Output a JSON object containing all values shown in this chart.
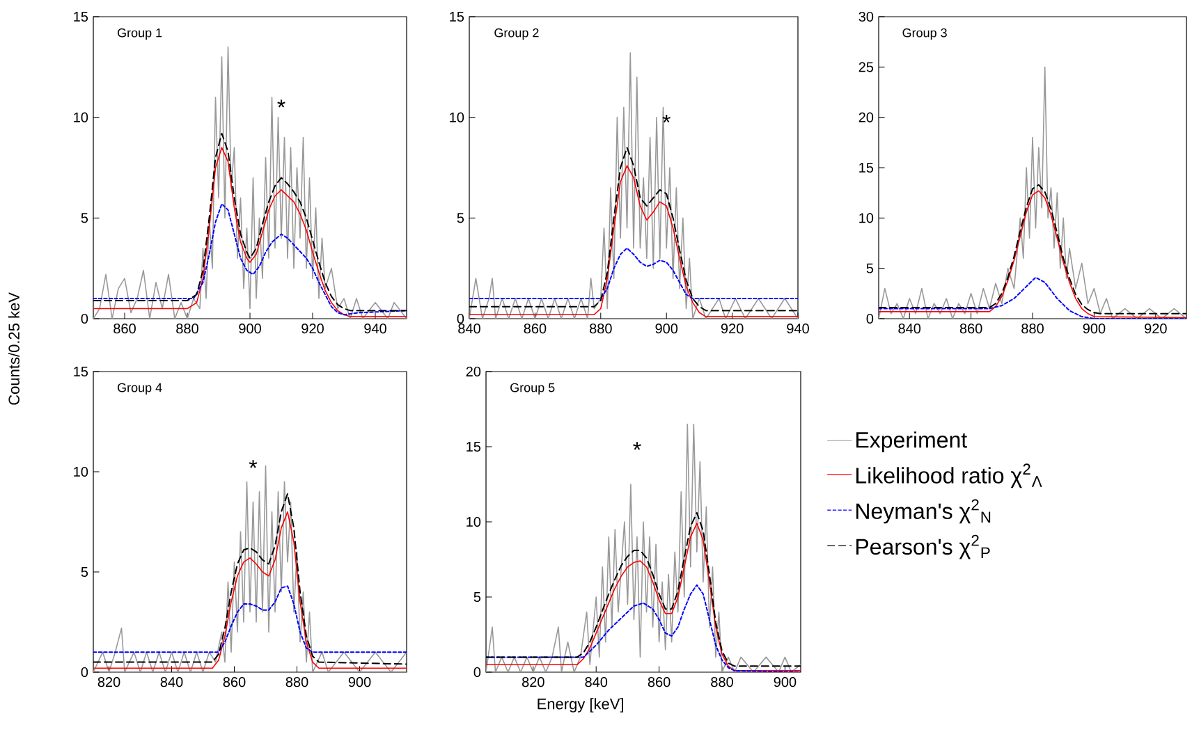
{
  "chart_data": [
    {
      "type": "line",
      "title": "Group 1",
      "ylabel": "Counts/0.25 keV",
      "xlim": [
        850,
        950
      ],
      "ylim": [
        0,
        15
      ],
      "xticks": [
        860,
        880,
        900,
        920,
        940
      ],
      "yticks": [
        0,
        5,
        10,
        15
      ],
      "annotations": [
        "*"
      ],
      "series": [
        {
          "color": "#999999",
          "line_style": "solid",
          "x": [
            850,
            852,
            854,
            856,
            858,
            860,
            862,
            864,
            866,
            868,
            870,
            872,
            874,
            876,
            878,
            880,
            882,
            884,
            885,
            886,
            887,
            888,
            889,
            890,
            891,
            892,
            893,
            894,
            895,
            896,
            897,
            898,
            899,
            900,
            901,
            902,
            903,
            904,
            905,
            906,
            907,
            908,
            909,
            910,
            911,
            912,
            913,
            914,
            915,
            916,
            917,
            918,
            919,
            920,
            921,
            922,
            923,
            924,
            926,
            928,
            930,
            932,
            934,
            936,
            940,
            944,
            946,
            950
          ],
          "values": [
            0,
            0.5,
            2.2,
            0,
            1.5,
            2.0,
            0.3,
            1.0,
            2.4,
            0,
            1.8,
            0.5,
            2.2,
            0,
            0.8,
            0,
            1.0,
            0.5,
            3.5,
            1.0,
            5.0,
            2.5,
            11.0,
            6.0,
            13.0,
            5.0,
            13.5,
            6.5,
            8.5,
            3.0,
            6.0,
            1.5,
            4.5,
            0.5,
            7.0,
            1.0,
            5.0,
            2.0,
            8.0,
            3.0,
            11.0,
            3.5,
            10.0,
            4.0,
            9.0,
            3.0,
            8.5,
            2.5,
            7.5,
            4.0,
            9.0,
            2.5,
            7.0,
            2.0,
            5.5,
            1.0,
            4.0,
            1.5,
            2.5,
            0.5,
            1.0,
            0,
            1.0,
            0,
            0.8,
            0,
            0.8,
            0
          ]
        },
        {
          "color": "#ff0000",
          "line_style": "solid",
          "x": [
            850,
            880,
            883,
            885,
            887,
            889,
            891,
            893,
            895,
            897,
            899,
            900,
            902,
            904,
            906,
            908,
            910,
            912,
            914,
            916,
            918,
            920,
            922,
            924,
            926,
            928,
            930,
            932,
            950
          ],
          "values": [
            0.5,
            0.5,
            0.8,
            2,
            4.5,
            7.5,
            8.5,
            7.8,
            5.5,
            3.8,
            3.0,
            2.8,
            3.2,
            4.3,
            5.4,
            6.1,
            6.4,
            6.1,
            5.8,
            5.2,
            4.4,
            3.3,
            2.3,
            1.4,
            0.8,
            0.4,
            0.2,
            0.1,
            0.1
          ]
        },
        {
          "color": "#0000ff",
          "line_style": "dotted",
          "x": [
            850,
            882,
            885,
            887,
            889,
            891,
            893,
            895,
            897,
            899,
            901,
            903,
            905,
            907,
            910,
            912,
            915,
            918,
            920,
            922,
            924,
            926,
            928,
            930,
            935,
            950
          ],
          "values": [
            1.0,
            1.0,
            1.8,
            3.2,
            4.8,
            5.7,
            5.4,
            4.2,
            3.0,
            2.4,
            2.2,
            2.6,
            3.3,
            3.8,
            4.2,
            4.0,
            3.5,
            3.0,
            2.5,
            1.8,
            1.2,
            0.6,
            0.3,
            0.2,
            0.3,
            0.4
          ]
        },
        {
          "color": "#000000",
          "line_style": "dashed",
          "x": [
            850,
            880,
            883,
            885,
            887,
            889,
            891,
            893,
            895,
            897,
            899,
            900,
            902,
            904,
            906,
            908,
            910,
            912,
            914,
            916,
            918,
            920,
            922,
            924,
            926,
            928,
            930,
            932,
            950
          ],
          "values": [
            0.9,
            0.9,
            1.2,
            2.4,
            5,
            8,
            9.2,
            8.3,
            6,
            4.2,
            3.3,
            3.0,
            3.5,
            4.7,
            5.8,
            6.6,
            7.0,
            6.7,
            6.3,
            5.8,
            5.0,
            3.9,
            2.8,
            1.8,
            1.1,
            0.7,
            0.5,
            0.4,
            0.4
          ]
        }
      ]
    },
    {
      "type": "line",
      "title": "Group 2",
      "xlim": [
        840,
        940
      ],
      "ylim": [
        0,
        15
      ],
      "xticks": [
        840,
        860,
        880,
        900,
        920,
        940
      ],
      "yticks": [
        0,
        5,
        10,
        15
      ],
      "annotations": [
        "*"
      ],
      "series": [
        {
          "color": "#999999",
          "line_style": "solid",
          "x": [
            840,
            842,
            844,
            846,
            847,
            848,
            850,
            852,
            854,
            856,
            858,
            860,
            862,
            864,
            866,
            868,
            870,
            872,
            874,
            876,
            877,
            878,
            880,
            881,
            882,
            883,
            884,
            885,
            886,
            887,
            888,
            889,
            890,
            891,
            892,
            893,
            894,
            895,
            896,
            897,
            898,
            899,
            900,
            901,
            902,
            903,
            904,
            905,
            906,
            907,
            908,
            910,
            912,
            916,
            918,
            921,
            924,
            928,
            932,
            936,
            940
          ],
          "values": [
            0,
            2.0,
            0,
            1.0,
            2.0,
            0,
            1.0,
            0,
            1.0,
            0,
            1.0,
            0,
            1.0,
            0,
            1.0,
            0,
            1.0,
            0,
            1.0,
            0,
            2.0,
            0.5,
            1.0,
            4.5,
            0.5,
            6.5,
            2.0,
            10.0,
            4.0,
            10.5,
            4.5,
            13.2,
            3.5,
            12.0,
            3.5,
            7.0,
            3.0,
            9.0,
            2.5,
            10.0,
            3.0,
            10.5,
            3.5,
            7.5,
            2.0,
            6.5,
            1.5,
            5.0,
            0.5,
            3.0,
            0,
            1.0,
            0,
            1.0,
            0,
            1.0,
            0,
            1.0,
            0,
            1.0,
            0
          ]
        },
        {
          "color": "#ff0000",
          "line_style": "solid",
          "x": [
            840,
            878,
            880,
            882,
            884,
            886,
            888,
            890,
            892,
            894,
            896,
            898,
            900,
            902,
            904,
            906,
            908,
            910,
            912,
            940
          ],
          "values": [
            0.2,
            0.2,
            0.5,
            2,
            4.5,
            6.8,
            7.6,
            7.0,
            5.6,
            4.9,
            5.3,
            5.8,
            5.6,
            4.5,
            3.0,
            1.6,
            0.8,
            0.3,
            0.1,
            0.1
          ]
        },
        {
          "color": "#0000ff",
          "line_style": "dotted",
          "x": [
            840,
            880,
            882,
            884,
            886,
            888,
            890,
            892,
            894,
            896,
            898,
            900,
            902,
            904,
            906,
            908,
            940
          ],
          "values": [
            1.0,
            1.0,
            1.5,
            2.5,
            3.2,
            3.5,
            3.2,
            2.8,
            2.6,
            2.7,
            2.9,
            2.8,
            2.4,
            1.8,
            1.2,
            1.0,
            1.0
          ]
        },
        {
          "color": "#000000",
          "line_style": "dashed",
          "x": [
            840,
            878,
            880,
            882,
            884,
            886,
            888,
            890,
            892,
            894,
            896,
            898,
            900,
            902,
            904,
            906,
            908,
            910,
            912,
            940
          ],
          "values": [
            0.6,
            0.6,
            0.9,
            2.3,
            5,
            7.5,
            8.5,
            7.6,
            6.0,
            5.6,
            6.0,
            6.4,
            6.2,
            5.0,
            3.4,
            1.9,
            1.0,
            0.6,
            0.4,
            0.4
          ]
        }
      ]
    },
    {
      "type": "line",
      "title": "Group 3",
      "xlim": [
        830,
        930
      ],
      "ylim": [
        0,
        30
      ],
      "xticks": [
        840,
        860,
        880,
        900,
        920
      ],
      "yticks": [
        0,
        5,
        10,
        15,
        20,
        25,
        30
      ],
      "series": [
        {
          "color": "#999999",
          "line_style": "solid",
          "x": [
            830,
            832,
            834,
            836,
            838,
            840,
            842,
            844,
            846,
            848,
            850,
            852,
            854,
            856,
            858,
            860,
            862,
            864,
            866,
            868,
            870,
            872,
            874,
            876,
            877,
            878,
            879,
            880,
            881,
            882,
            883,
            884,
            885,
            886,
            887,
            888,
            889,
            890,
            891,
            892,
            894,
            896,
            898,
            900,
            902,
            904,
            906,
            910,
            914,
            918,
            922,
            926,
            930
          ],
          "values": [
            0,
            3.0,
            0.5,
            1.5,
            0,
            2.0,
            0.5,
            3.0,
            0,
            1.5,
            0.5,
            2.0,
            0,
            1.5,
            0.5,
            2.5,
            0.5,
            3.0,
            1.0,
            3.5,
            1.5,
            5.0,
            3.0,
            10.0,
            6.0,
            15.0,
            8.0,
            18.0,
            9.0,
            17.0,
            11.0,
            25.0,
            10.0,
            13.0,
            7.0,
            12.5,
            5.0,
            10.0,
            4.0,
            7.0,
            3.0,
            5.5,
            1.5,
            3.0,
            0.5,
            2.0,
            0,
            1.0,
            0,
            1.0,
            0,
            1.0,
            0
          ]
        },
        {
          "color": "#ff0000",
          "line_style": "solid",
          "x": [
            830,
            866,
            868,
            870,
            872,
            874,
            876,
            878,
            880,
            882,
            884,
            886,
            888,
            890,
            892,
            894,
            896,
            898,
            900,
            930
          ],
          "values": [
            0.7,
            0.7,
            1.2,
            2.2,
            3.8,
            5.8,
            8.2,
            10.6,
            12.3,
            12.7,
            12.0,
            10.3,
            8.0,
            5.6,
            3.6,
            2.0,
            1.0,
            0.5,
            0.2,
            0.1
          ]
        },
        {
          "color": "#0000ff",
          "line_style": "dotted",
          "x": [
            830,
            866,
            870,
            874,
            878,
            881,
            884,
            888,
            892,
            896,
            900,
            930
          ],
          "values": [
            1.0,
            1.0,
            1.3,
            2.0,
            3.2,
            4.1,
            3.6,
            2.0,
            0.8,
            0.2,
            0,
            0
          ]
        },
        {
          "color": "#000000",
          "line_style": "dashed",
          "x": [
            830,
            866,
            868,
            870,
            872,
            874,
            876,
            878,
            880,
            882,
            884,
            886,
            888,
            890,
            892,
            894,
            896,
            898,
            900,
            902,
            930
          ],
          "values": [
            1.1,
            1.1,
            1.5,
            2.5,
            4.1,
            6.2,
            8.7,
            11.1,
            12.9,
            13.3,
            12.6,
            10.9,
            8.5,
            6.0,
            4.0,
            2.4,
            1.4,
            0.9,
            0.6,
            0.5,
            0.5
          ]
        }
      ]
    },
    {
      "type": "line",
      "title": "Group 4",
      "xlim": [
        815,
        915
      ],
      "ylim": [
        0,
        15
      ],
      "xticks": [
        820,
        840,
        860,
        880,
        900
      ],
      "yticks": [
        0,
        5,
        10,
        15
      ],
      "annotations": [
        "*"
      ],
      "series": [
        {
          "color": "#999999",
          "line_style": "solid",
          "x": [
            815,
            818,
            820,
            822,
            824,
            825,
            828,
            830,
            832,
            834,
            836,
            838,
            840,
            842,
            844,
            846,
            848,
            850,
            852,
            854,
            856,
            857,
            858,
            859,
            860,
            861,
            862,
            863,
            864,
            865,
            866,
            867,
            868,
            869,
            870,
            871,
            872,
            873,
            874,
            875,
            876,
            877,
            878,
            879,
            880,
            881,
            882,
            883,
            884,
            885,
            888,
            890,
            895,
            900,
            905,
            910,
            915
          ],
          "values": [
            0,
            1.0,
            0,
            1.0,
            2.2,
            0,
            1.0,
            0,
            1.0,
            0,
            1.0,
            0,
            1.0,
            0,
            1.0,
            0,
            1.0,
            0,
            1.0,
            0.5,
            2.0,
            0.5,
            4.5,
            1.0,
            5.5,
            2.0,
            7.0,
            2.5,
            9.5,
            3.0,
            8.5,
            2.5,
            9.0,
            3.0,
            10.3,
            2.0,
            8.0,
            3.0,
            9.0,
            4.0,
            9.5,
            5.5,
            8.5,
            3.0,
            6.0,
            1.5,
            4.0,
            0.5,
            3.0,
            0,
            1.0,
            0,
            1.0,
            0,
            1.0,
            0,
            1.0
          ]
        },
        {
          "color": "#ff0000",
          "line_style": "solid",
          "x": [
            815,
            853,
            855,
            857,
            859,
            861,
            863,
            865,
            867,
            869,
            871,
            873,
            875,
            877,
            879,
            881,
            883,
            885,
            887,
            915
          ],
          "values": [
            0.2,
            0.2,
            0.6,
            1.8,
            3.5,
            4.8,
            5.5,
            5.7,
            5.4,
            5.0,
            4.8,
            5.6,
            7.2,
            8.0,
            6.5,
            3.5,
            1.5,
            0.5,
            0.2,
            0.2
          ]
        },
        {
          "color": "#0000ff",
          "line_style": "dotted",
          "x": [
            815,
            855,
            857,
            859,
            861,
            863,
            865,
            867,
            869,
            871,
            873,
            875,
            877,
            879,
            881,
            883,
            885,
            915
          ],
          "values": [
            1.0,
            1.0,
            1.5,
            2.3,
            3.0,
            3.4,
            3.4,
            3.3,
            3.1,
            3.1,
            3.5,
            4.2,
            4.3,
            3.4,
            2.0,
            1.2,
            1.0,
            1.0
          ]
        },
        {
          "color": "#000000",
          "line_style": "dashed",
          "x": [
            815,
            853,
            855,
            857,
            859,
            861,
            863,
            865,
            867,
            869,
            871,
            873,
            875,
            877,
            879,
            881,
            883,
            885,
            887,
            915
          ],
          "values": [
            0.5,
            0.5,
            0.9,
            2.2,
            4,
            5.4,
            6.1,
            6.2,
            6.0,
            5.6,
            5.4,
            6.3,
            8.0,
            8.9,
            7.2,
            4.0,
            1.8,
            0.8,
            0.5,
            0.4
          ]
        }
      ]
    },
    {
      "type": "line",
      "title": "Group 5",
      "xlabel": "Energy [keV]",
      "xlim": [
        805,
        905
      ],
      "ylim": [
        0,
        20
      ],
      "xticks": [
        820,
        840,
        860,
        880,
        900
      ],
      "yticks": [
        0,
        5,
        10,
        15,
        20
      ],
      "legend": "right",
      "annotations": [
        "*"
      ],
      "series": [
        {
          "name": "Experiment",
          "color": "#999999",
          "line_style": "solid",
          "x": [
            805,
            807,
            808,
            810,
            812,
            814,
            816,
            818,
            820,
            822,
            824,
            826,
            828,
            829,
            831,
            833,
            835,
            837,
            838,
            840,
            841,
            842,
            843,
            844,
            845,
            846,
            847,
            849,
            850,
            851,
            852,
            853,
            854,
            855,
            856,
            857,
            858,
            859,
            860,
            861,
            862,
            863,
            864,
            865,
            866,
            867,
            868,
            869,
            870,
            871,
            872,
            873,
            874,
            875,
            876,
            877,
            878,
            879,
            880,
            882,
            884,
            886,
            890,
            894,
            898,
            900,
            902,
            905
          ],
          "values": [
            0,
            3.0,
            0,
            1.0,
            0,
            1.0,
            0,
            1.0,
            0,
            1.0,
            0,
            1.0,
            3.0,
            0,
            2.0,
            0,
            1.0,
            4.0,
            0.5,
            5.0,
            1.0,
            7.0,
            2.0,
            9.0,
            3.0,
            9.5,
            4.0,
            10.0,
            4.5,
            12.5,
            3.5,
            9.0,
            1.0,
            10.0,
            4.0,
            9.0,
            3.0,
            8.5,
            2.0,
            6.0,
            1.5,
            6.5,
            2.0,
            8.0,
            4.0,
            12.0,
            5.0,
            16.5,
            7.0,
            16.5,
            8.0,
            14.0,
            6.0,
            11.0,
            3.0,
            7.0,
            1.0,
            4.0,
            0,
            1.0,
            0,
            1.0,
            0,
            1.0,
            0,
            1.0,
            0,
            0.5
          ]
        },
        {
          "name": "Likelihood ratio χ$^{2}$$_{Λ}$",
          "color": "#ff0000",
          "line_style": "solid",
          "x": [
            805,
            834,
            836,
            838,
            840,
            842,
            844,
            846,
            848,
            850,
            852,
            854,
            856,
            858,
            860,
            862,
            864,
            866,
            868,
            870,
            872,
            874,
            876,
            878,
            880,
            882,
            884,
            905
          ],
          "values": [
            0.5,
            0.5,
            0.9,
            1.6,
            2.6,
            3.6,
            4.6,
            5.6,
            6.4,
            7.0,
            7.3,
            7.4,
            7.0,
            6.0,
            4.8,
            3.9,
            3.9,
            5.0,
            7.0,
            9.0,
            9.9,
            8.8,
            6.0,
            3.0,
            1.2,
            0.4,
            0.1,
            0.1
          ]
        },
        {
          "name": "Neyman's χ$^{2}$$_{N}$",
          "color": "#0000ff",
          "line_style": "dotted",
          "x": [
            805,
            836,
            840,
            844,
            848,
            852,
            855,
            858,
            860,
            862,
            864,
            866,
            868,
            870,
            872,
            874,
            876,
            878,
            880,
            882,
            884,
            905
          ],
          "values": [
            1.0,
            1.0,
            1.8,
            2.8,
            3.6,
            4.4,
            4.6,
            4.2,
            3.5,
            2.6,
            2.4,
            3.0,
            4.2,
            5.2,
            5.8,
            5.2,
            3.5,
            1.8,
            0.8,
            0.3,
            0.1,
            0
          ]
        },
        {
          "name": "Pearson's χ$^{2}$$_{P}$",
          "color": "#000000",
          "line_style": "dashed",
          "x": [
            805,
            834,
            836,
            838,
            840,
            842,
            844,
            846,
            848,
            850,
            852,
            854,
            856,
            858,
            860,
            862,
            864,
            866,
            868,
            870,
            872,
            874,
            876,
            878,
            880,
            882,
            884,
            905
          ],
          "values": [
            1.0,
            1.0,
            1.3,
            2.0,
            3.0,
            4.1,
            5.2,
            6.2,
            7.1,
            7.7,
            8.1,
            8.1,
            7.6,
            6.5,
            5.2,
            4.2,
            4.2,
            5.4,
            7.6,
            9.7,
            10.6,
            9.4,
            6.5,
            3.3,
            1.4,
            0.6,
            0.4,
            0.4
          ]
        }
      ]
    }
  ]
}
